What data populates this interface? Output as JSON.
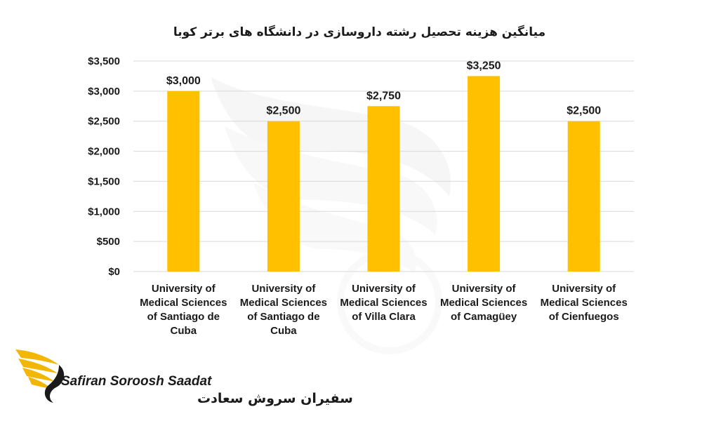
{
  "chart_data": {
    "type": "bar",
    "title": "میانگین هزینه تحصیل رشته داروسازی در دانشگاه های برتر کوبا",
    "categories": [
      "University of Medical Sciences of Santiago de Cuba",
      "University of Medical Sciences of Santiago de Cuba",
      "University of Medical Sciences of Villa Clara",
      "University of Medical Sciences of Camagüey",
      "University of Medical Sciences of Cienfuegos"
    ],
    "category_lines": [
      [
        "University of",
        "Medical Sciences",
        "of Santiago de",
        "Cuba"
      ],
      [
        "University of",
        "Medical Sciences",
        "of Santiago de",
        "Cuba"
      ],
      [
        "University of",
        "Medical Sciences",
        "of Villa Clara"
      ],
      [
        "University of",
        "Medical Sciences",
        "of Camagüey"
      ],
      [
        "University of",
        "Medical Sciences",
        "of Cienfuegos"
      ]
    ],
    "values": [
      3000,
      2500,
      2750,
      3250,
      2500
    ],
    "data_labels": [
      "$3,000",
      "$2,500",
      "$2,750",
      "$3,250",
      "$2,500"
    ],
    "ylim": [
      0,
      3500
    ],
    "yticks": [
      0,
      500,
      1000,
      1500,
      2000,
      2500,
      3000,
      3500
    ],
    "ytick_labels": [
      "$0",
      "$500",
      "$1,000",
      "$1,500",
      "$2,000",
      "$2,500",
      "$3,000",
      "$3,500"
    ],
    "grid": true,
    "legend": "none",
    "bar_color": "#FFC000",
    "grid_color": "#D9D9D9"
  },
  "brand": {
    "name_en": "Safiran Soroosh Saadat",
    "name_fa": "سفیران سروش سعادت",
    "logo_icon": "golden-wing-icon",
    "accent_color": "#F2B705"
  }
}
